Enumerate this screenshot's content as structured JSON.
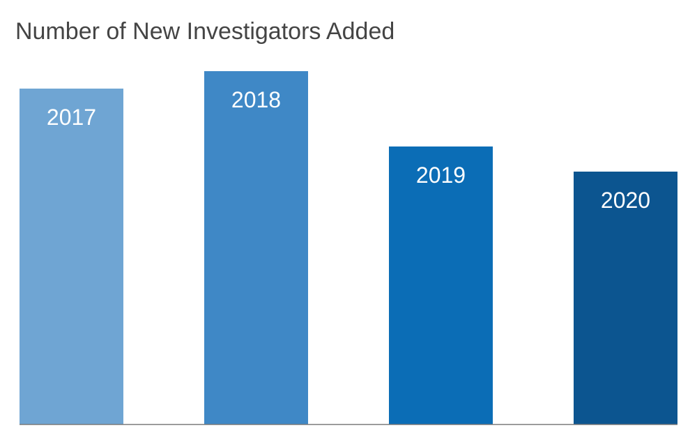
{
  "chart_data": {
    "type": "bar",
    "title": "Number of New Investigators Added",
    "categories": [
      "2017",
      "2018",
      "2019",
      "2020"
    ],
    "values": [
      481,
      506,
      398,
      362
    ],
    "colors": [
      "#6fa5d3",
      "#3f88c6",
      "#0b6db6",
      "#0c5590"
    ],
    "ylim": [
      0,
      506
    ]
  }
}
